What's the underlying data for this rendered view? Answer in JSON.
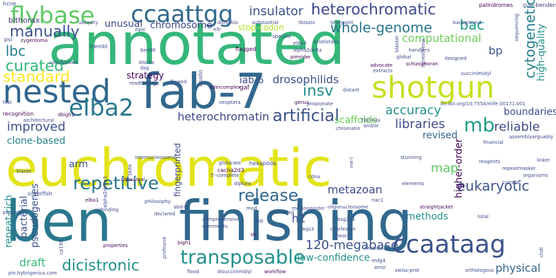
{
  "words": [
    {
      "id": "w0",
      "text": "hcne",
      "color": "#3b528b"
    },
    {
      "id": "w1",
      "text": "flybase",
      "color": "#5ec962"
    },
    {
      "id": "w2",
      "text": "annotated",
      "color": "#35b779"
    },
    {
      "id": "w3",
      "text": "ccaattgg",
      "color": "#31688e"
    },
    {
      "id": "w4",
      "text": "insulator",
      "color": "#3b528b"
    },
    {
      "id": "w5",
      "text": "heterochromatic",
      "color": "#3e4989"
    },
    {
      "id": "w6",
      "text": "palindromes",
      "color": "#440154"
    },
    {
      "id": "w7",
      "text": "rule-benders",
      "color": "#46327e"
    },
    {
      "id": "w8",
      "text": "stop-codon",
      "color": "#b5de2b"
    },
    {
      "id": "w9",
      "text": "whole-genome",
      "color": "#2a788e"
    },
    {
      "id": "w10",
      "text": "bac",
      "color": "#1f9e89"
    },
    {
      "id": "w11",
      "text": "cytogenetic",
      "color": "#26828e"
    },
    {
      "id": "w12",
      "text": "manually",
      "color": "#3b528b"
    },
    {
      "id": "w13",
      "text": "unusual",
      "color": "#3e4989"
    },
    {
      "id": "w14",
      "text": "chromosome",
      "color": "#3e4989"
    },
    {
      "id": "w15",
      "text": "computational",
      "color": "#6ece58"
    },
    {
      "id": "w16",
      "text": "bithorax",
      "color": "#443a83"
    },
    {
      "id": "w17",
      "text": "lbc",
      "color": "#26828e"
    },
    {
      "id": "w18",
      "text": "curated",
      "color": "#35b779"
    },
    {
      "id": "w19",
      "text": "nested",
      "color": "#31688e"
    },
    {
      "id": "w20",
      "text": "fab-7",
      "color": "#31688e"
    },
    {
      "id": "w21",
      "text": "shotgun",
      "color": "#c8e020"
    },
    {
      "id": "w22",
      "text": "bp",
      "color": "#3b528b"
    },
    {
      "id": "w23",
      "text": "high-quality",
      "color": "#21918c"
    },
    {
      "id": "w24",
      "text": "standard",
      "color": "#fde725"
    },
    {
      "id": "w25",
      "text": "strategy",
      "color": "#440154"
    },
    {
      "id": "w26",
      "text": "iab-6",
      "color": "#3e4989"
    },
    {
      "id": "w27",
      "text": "drosophilids",
      "color": "#3b528b"
    },
    {
      "id": "w28",
      "text": "insv",
      "color": "#21918c"
    },
    {
      "id": "w29",
      "text": "accuracy",
      "color": "#21918c"
    },
    {
      "id": "w30",
      "text": "elba2",
      "color": "#2a788e"
    },
    {
      "id": "w31",
      "text": "boundaries",
      "color": "#3e4989"
    },
    {
      "id": "w32",
      "text": "mb",
      "color": "#1f9e89"
    },
    {
      "id": "w33",
      "text": "reliable",
      "color": "#3e4989"
    },
    {
      "id": "w34",
      "text": "heterochromatin",
      "color": "#3e4989"
    },
    {
      "id": "w35",
      "text": "artificial",
      "color": "#3b528b"
    },
    {
      "id": "w36",
      "text": "scaffolds",
      "color": "#6ece58"
    },
    {
      "id": "w37",
      "text": "libraries",
      "color": "#3e4989"
    },
    {
      "id": "w38",
      "text": "improved",
      "color": "#3b528b"
    },
    {
      "id": "w39",
      "text": "revised",
      "color": "#31688e"
    },
    {
      "id": "w40",
      "text": "clone-based",
      "color": "#26828e"
    },
    {
      "id": "w41",
      "text": "euchromatic",
      "color": "#e2e418"
    },
    {
      "id": "w42",
      "text": "repetitive",
      "color": "#2a788e"
    },
    {
      "id": "w43",
      "text": "release",
      "color": "#31688e"
    },
    {
      "id": "w44",
      "text": "metazoan",
      "color": "#3e4989"
    },
    {
      "id": "w45",
      "text": "eukaryotic",
      "color": "#3b528b"
    },
    {
      "id": "w46",
      "text": "higher-order",
      "color": "#440154"
    },
    {
      "id": "w47",
      "text": "map",
      "color": "#5ec962"
    },
    {
      "id": "w48",
      "text": "methods",
      "color": "#21918c"
    },
    {
      "id": "w49",
      "text": "ben",
      "color": "#2a788e"
    },
    {
      "id": "w50",
      "text": "finishing",
      "color": "#31688e"
    },
    {
      "id": "w51",
      "text": "transposable",
      "color": "#21918c"
    },
    {
      "id": "w52",
      "text": "ccaataag",
      "color": "#3b528b"
    },
    {
      "id": "w53",
      "text": "h1",
      "color": "#3e4989"
    },
    {
      "id": "w54",
      "text": "dicistronic",
      "color": "#21918c"
    },
    {
      "id": "w55",
      "text": "draft",
      "color": "#35b779"
    },
    {
      "id": "w56",
      "text": "low-confidence",
      "color": "#21918c"
    },
    {
      "id": "w57",
      "text": "120-megabase",
      "color": "#3b528b"
    },
    {
      "id": "w58",
      "text": "physical",
      "color": "#31688e"
    },
    {
      "id": "w59",
      "text": "bacterial",
      "color": "#3b528b"
    },
    {
      "id": "w60",
      "text": "pseudogenes",
      "color": "#3b528b"
    },
    {
      "id": "w61",
      "text": "repeat-rich",
      "color": "#21918c"
    },
    {
      "id": "w62",
      "text": "fingerprinted",
      "color": "#3e4989"
    },
    {
      "id": "w63",
      "text": "arm",
      "color": "#3b528b"
    },
    {
      "id": "w64",
      "text": "gaf",
      "color": "#440154"
    },
    {
      "id": "w65",
      "text": "apollo",
      "color": "#3e4989"
    },
    {
      "id": "w66",
      "text": "dx.doi.org/10.7554/elife.00171.001",
      "color": "#3b528b"
    },
    {
      "id": "w67",
      "text": "psi",
      "color": "#3e4989"
    },
    {
      "id": "w68",
      "text": "zygentoma",
      "color": "#440154"
    },
    {
      "id": "w69",
      "text": "conclusions",
      "color": "#3e4989"
    },
    {
      "id": "w70",
      "text": "trembl",
      "color": "#3e4989"
    },
    {
      "id": "w71",
      "text": "ubiquity",
      "color": "#3e4989"
    },
    {
      "id": "w72",
      "text": "zipic",
      "color": "#3e4989"
    },
    {
      "id": "w73",
      "text": "flagged",
      "color": "#440154"
    },
    {
      "id": "w74",
      "text": "blocks",
      "color": "#3e4989"
    },
    {
      "id": "w75",
      "text": "bend6",
      "color": "#3e4989"
    },
    {
      "id": "w76",
      "text": "recognition",
      "color": "#440154"
    },
    {
      "id": "w77",
      "text": "fast",
      "color": "#3e4989"
    },
    {
      "id": "w78",
      "text": "architectural",
      "color": "#3e4989"
    },
    {
      "id": "w79",
      "text": "silverfish",
      "color": "#3e4989"
    },
    {
      "id": "w80",
      "text": "elba1",
      "color": "#440154"
    },
    {
      "id": "w81",
      "text": "pausing",
      "color": "#3e4989"
    },
    {
      "id": "w82",
      "text": "cp190",
      "color": "#3e4989"
    },
    {
      "id": "w83",
      "text": "philosophy",
      "color": "#3e4989"
    },
    {
      "id": "w84",
      "text": "declared",
      "color": "#3e4989"
    },
    {
      "id": "w85",
      "text": "cacna2d3",
      "color": "#440154"
    },
    {
      "id": "w86",
      "text": "hexapoda",
      "color": "#3e4989"
    },
    {
      "id": "w87",
      "text": "glutarate",
      "color": "#3e4989"
    },
    {
      "id": "w88",
      "text": "5'-complete",
      "color": "#3e4989"
    },
    {
      "id": "w89",
      "text": "diplura",
      "color": "#3e4989"
    },
    {
      "id": "w90",
      "text": "nac1",
      "color": "#3e4989"
    },
    {
      "id": "w91",
      "text": "comprehensive",
      "color": "#3e4989"
    },
    {
      "id": "w92",
      "text": "comments",
      "color": "#3e4989"
    },
    {
      "id": "w93",
      "text": "theory",
      "color": "#3e4989"
    },
    {
      "id": "w94",
      "text": "charleston",
      "color": "#3e4989"
    },
    {
      "id": "w95",
      "text": "firebats",
      "color": "#3e4989"
    },
    {
      "id": "w96",
      "text": "mdg4",
      "color": "#3e4989"
    },
    {
      "id": "w97",
      "text": "error",
      "color": "#3e4989"
    },
    {
      "id": "w98",
      "text": "swiss-prot",
      "color": "#3e4989"
    },
    {
      "id": "w99",
      "text": "orthologous",
      "color": "#3e4989"
    },
    {
      "id": "w100",
      "text": "disuccinimidyl",
      "color": "#3e4989"
    },
    {
      "id": "w101",
      "text": "workflow",
      "color": "#440154"
    },
    {
      "id": "w102",
      "text": "flood",
      "color": "#3e4989"
    },
    {
      "id": "w103",
      "text": "profound",
      "color": "#3e4989"
    },
    {
      "id": "w104",
      "text": "properties",
      "color": "#440154"
    },
    {
      "id": "w105",
      "text": "pin.hybrigenics.com",
      "color": "#3e4989"
    },
    {
      "id": "w106",
      "text": "reagents",
      "color": "#3e4989"
    },
    {
      "id": "w107",
      "text": "linker",
      "color": "#3e4989"
    },
    {
      "id": "w108",
      "text": "repeatmasker",
      "color": "#3e4989"
    },
    {
      "id": "w109",
      "text": "organisms",
      "color": "#3e4989"
    },
    {
      "id": "w110",
      "text": "current",
      "color": "#3e4989"
    },
    {
      "id": "w111",
      "text": "assemblyarguably",
      "color": "#3e4989"
    },
    {
      "id": "w112",
      "text": "financial",
      "color": "#3e4989"
    },
    {
      "id": "w113",
      "text": "stunning",
      "color": "#3e4989"
    },
    {
      "id": "w114",
      "text": "700-kda",
      "color": "#3e4989"
    },
    {
      "id": "w115",
      "text": "and/or",
      "color": "#3e4989"
    },
    {
      "id": "w116",
      "text": "chromatin",
      "color": "#3e4989"
    },
    {
      "id": "w117",
      "text": "synesthesia",
      "color": "#3e4989"
    },
    {
      "id": "w118",
      "text": "succinimidyl",
      "color": "#3e4989"
    },
    {
      "id": "w119",
      "text": "schizophoran",
      "color": "#440154"
    },
    {
      "id": "w120",
      "text": "extracts",
      "color": "#3e4989"
    },
    {
      "id": "w121",
      "text": "advocate",
      "color": "#440154"
    },
    {
      "id": "w122",
      "text": "distant",
      "color": "#3e4989"
    },
    {
      "id": "w123",
      "text": "species",
      "color": "#3e4989"
    },
    {
      "id": "w124",
      "text": "elba3",
      "color": "#3e4989"
    },
    {
      "id": "w125",
      "text": "bristletails",
      "color": "#3e4989"
    },
    {
      "id": "w126",
      "text": "pimrider",
      "color": "#440154"
    },
    {
      "id": "w127",
      "text": "alpha2delta",
      "color": "#3e4989"
    },
    {
      "id": "w128",
      "text": "substantial",
      "color": "#3e4989"
    },
    {
      "id": "w129",
      "text": "tblastx",
      "color": "#3e4989"
    },
    {
      "id": "w130",
      "text": "timepoint",
      "color": "#3e4989"
    },
    {
      "id": "w131",
      "text": "background",
      "color": "#3e4989"
    },
    {
      "id": "w132",
      "text": "sequencing",
      "color": "#3e4989"
    },
    {
      "id": "w133",
      "text": "handlers",
      "color": "#3e4989"
    },
    {
      "id": "w134",
      "text": "blaster",
      "color": "#3e4989"
    },
    {
      "id": "w135",
      "text": "global",
      "color": "#3e4989"
    },
    {
      "id": "w136",
      "text": "designed",
      "color": "#3e4989"
    },
    {
      "id": "w137",
      "text": "neoptera",
      "color": "#3e4989"
    },
    {
      "id": "w138",
      "text": "intercomplex",
      "color": "#440154"
    },
    {
      "id": "w139",
      "text": "readthrough",
      "color": "#3e4989"
    },
    {
      "id": "w140",
      "text": "flawed",
      "color": "#3e4989"
    },
    {
      "id": "w141",
      "text": "genus",
      "color": "#440154"
    },
    {
      "id": "w142",
      "text": "propionate",
      "color": "#3e4989"
    },
    {
      "id": "w143",
      "text": "ine-l",
      "color": "#3e4989"
    },
    {
      "id": "w144",
      "text": "cdna",
      "color": "#3e4989"
    },
    {
      "id": "w145",
      "text": "elements",
      "color": "#3e4989"
    },
    {
      "id": "w146",
      "text": "bsg25a",
      "color": "#3e4989"
    },
    {
      "id": "w147",
      "text": "wgs3",
      "color": "#3e4989"
    },
    {
      "id": "w148",
      "text": "stj",
      "color": "#440154"
    },
    {
      "id": "w149",
      "text": "mod",
      "color": "#3e4989"
    },
    {
      "id": "w150",
      "text": "dsp",
      "color": "#3e4989"
    },
    {
      "id": "w151",
      "text": "melanogaster",
      "color": "#3e4989"
    },
    {
      "id": "w152",
      "text": "oligonucleosome",
      "color": "#3e4989"
    },
    {
      "id": "w153",
      "text": "straightjacket",
      "color": "#440154"
    },
    {
      "id": "w154",
      "text": "estimated",
      "color": "#3e4989"
    },
    {
      "id": "w155",
      "text": "1kite",
      "color": "#3e4989"
    },
    {
      "id": "w156",
      "text": "ribosomal",
      "color": "#440154"
    },
    {
      "id": "w157",
      "text": "alpha2delta3",
      "color": "#3e4989"
    },
    {
      "id": "w158",
      "text": "cohinding",
      "color": "#3e4989"
    },
    {
      "id": "w159",
      "text": "internucleosomal",
      "color": "#3e4989"
    },
    {
      "id": "w160",
      "text": "blastn",
      "color": "#3e4989"
    },
    {
      "id": "w161",
      "text": "dbigh1",
      "color": "#440154"
    },
    {
      "id": "w162",
      "text": "abd-b",
      "color": "#3e4989"
    },
    {
      "id": "w163",
      "text": "bigh1",
      "color": "#440154"
    },
    {
      "id": "w164",
      "text": "chdl",
      "color": "#3e4989"
    },
    {
      "id": "w165",
      "text": "total",
      "color": "#3e4989"
    },
    {
      "id": "w166",
      "text": "dsg",
      "color": "#3e4989"
    },
    {
      "id": "w167",
      "text": "e5r",
      "color": "#3e4989"
    },
    {
      "id": "w168",
      "text": "dithiobis",
      "color": "#3e4989"
    }
  ]
}
